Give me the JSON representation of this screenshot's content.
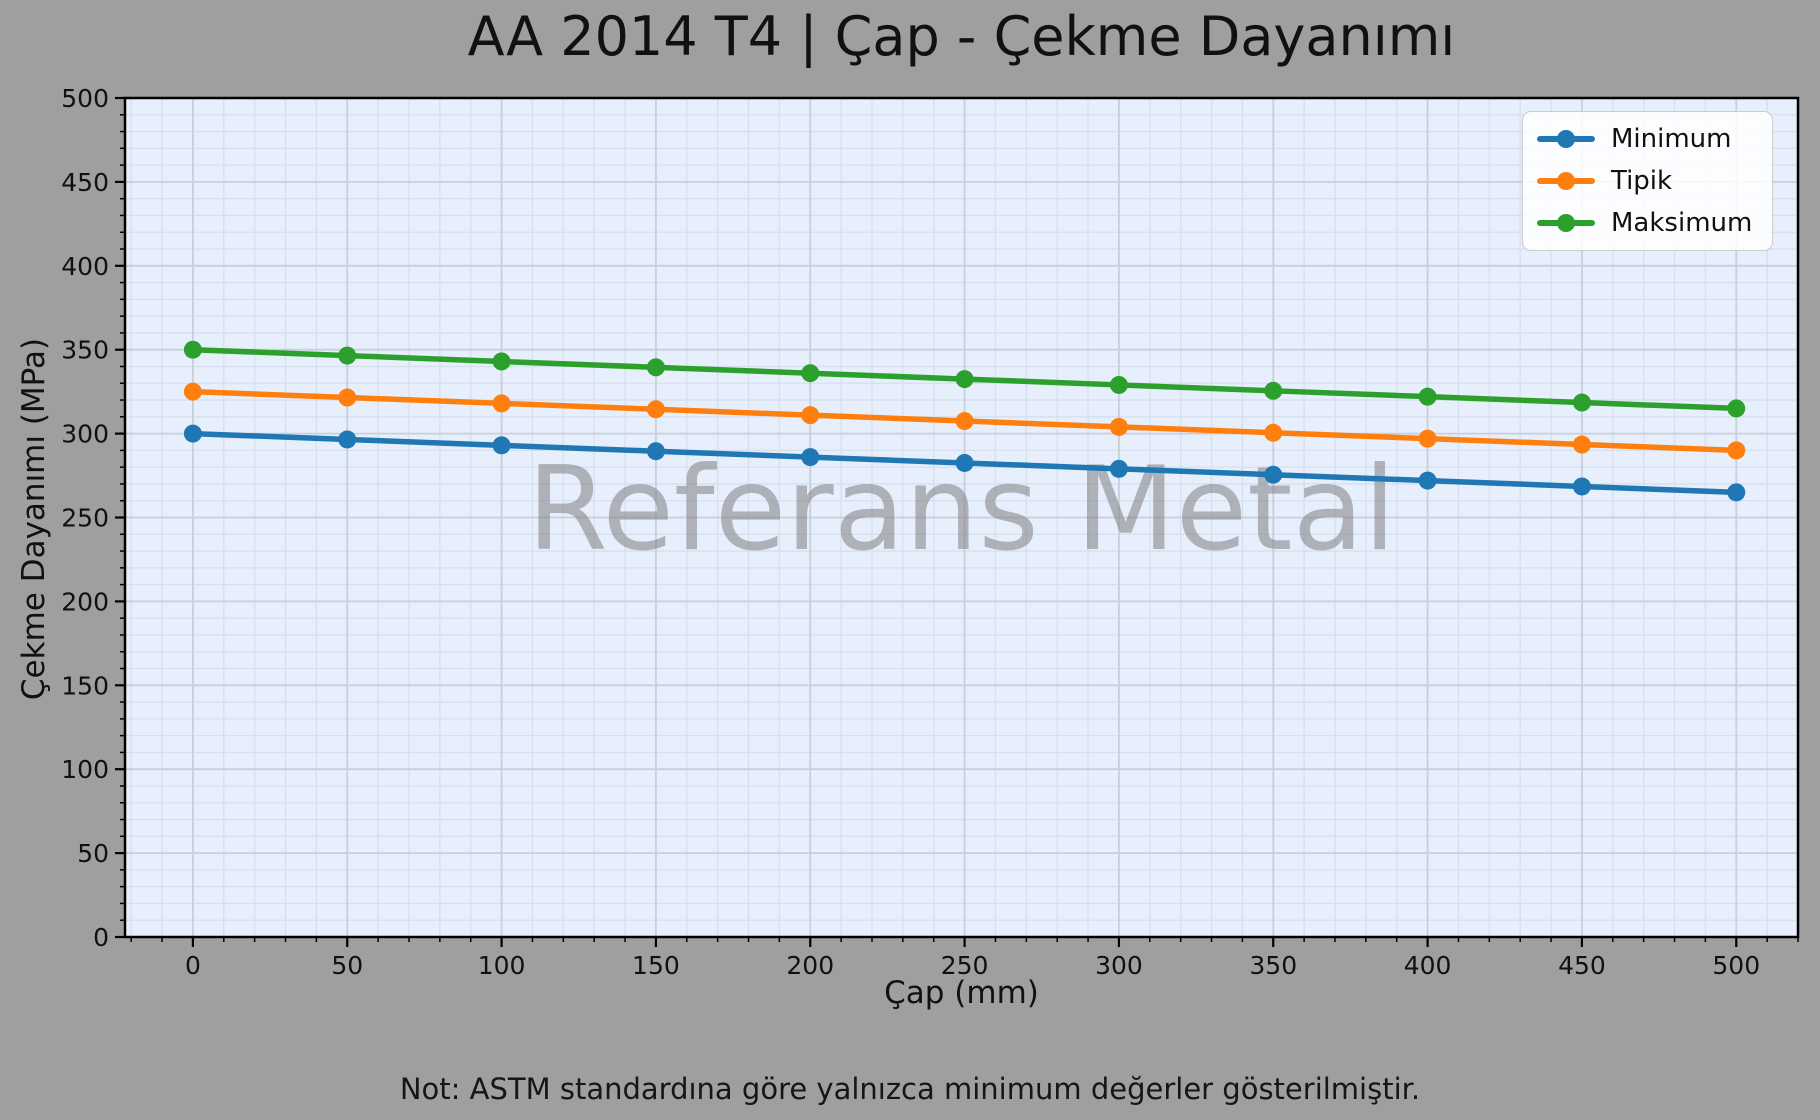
{
  "colors": {
    "figure_bg": "#9f9fa0",
    "plot_bg": "#e7effc",
    "grid_major": "#c9cfda",
    "grid_minor": "#d6dfee",
    "spine": "#000000",
    "text": "#111111",
    "watermark": "#808080",
    "legend_bg": "rgba(255,255,255,0.85)",
    "legend_border": "#cccccc"
  },
  "chart_data": {
    "type": "line",
    "title": "AA 2014 T4 | Çap - Çekme Dayanımı",
    "xlabel": "Çap (mm)",
    "ylabel": "Çekme Dayanımı (MPa)",
    "x": [
      0,
      50,
      100,
      150,
      200,
      250,
      300,
      350,
      400,
      450,
      500
    ],
    "series": [
      {
        "name": "Minimum",
        "color": "#1f77b4",
        "values": [
          300,
          296.5,
          293,
          289.5,
          286,
          282.5,
          279,
          275.5,
          272,
          268.5,
          265
        ]
      },
      {
        "name": "Tipik",
        "color": "#ff7f0e",
        "values": [
          325,
          321.5,
          318,
          314.5,
          311,
          307.5,
          304,
          300.5,
          297,
          293.5,
          290
        ]
      },
      {
        "name": "Maksimum",
        "color": "#2ca02c",
        "values": [
          350,
          346.5,
          343,
          339.5,
          336,
          332.5,
          329,
          325.5,
          322,
          318.5,
          315
        ]
      }
    ],
    "xticks": [
      0,
      50,
      100,
      150,
      200,
      250,
      300,
      350,
      400,
      450,
      500
    ],
    "yticks": [
      0,
      50,
      100,
      150,
      200,
      250,
      300,
      350,
      400,
      450,
      500
    ],
    "xlim": [
      -22,
      520
    ],
    "ylim": [
      0,
      500
    ],
    "minor_step": 10,
    "grid": "on",
    "legend": {
      "position": "top-right",
      "entries": [
        "Minimum",
        "Tipik",
        "Maksimum"
      ]
    },
    "watermark": "Referans Metal",
    "note": "Not: ASTM standardına göre yalnızca minimum değerler gösterilmiştir."
  }
}
